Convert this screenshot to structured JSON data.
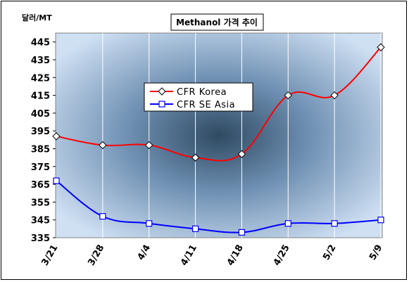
{
  "chart_data": {
    "type": "line",
    "title": "Methanol 가격 추이",
    "ylabel": "달러/MT",
    "xlabel": "",
    "categories": [
      "3/21",
      "3/28",
      "4/4",
      "4/11",
      "4/18",
      "4/25",
      "5/2",
      "5/9"
    ],
    "y_ticks": [
      335,
      345,
      355,
      365,
      375,
      385,
      395,
      405,
      415,
      425,
      435,
      445
    ],
    "ylim": [
      335,
      450
    ],
    "grid": "vertical",
    "legend_position": "center-left",
    "series": [
      {
        "name": "CFR Korea",
        "color": "#ff0000",
        "marker": "diamond",
        "values": [
          392,
          387,
          387,
          380,
          382,
          415,
          415,
          442
        ]
      },
      {
        "name": "CFR SE Asia",
        "color": "#0000ff",
        "marker": "square",
        "values": [
          367,
          347,
          343,
          340,
          338,
          343,
          343,
          345
        ]
      }
    ]
  }
}
